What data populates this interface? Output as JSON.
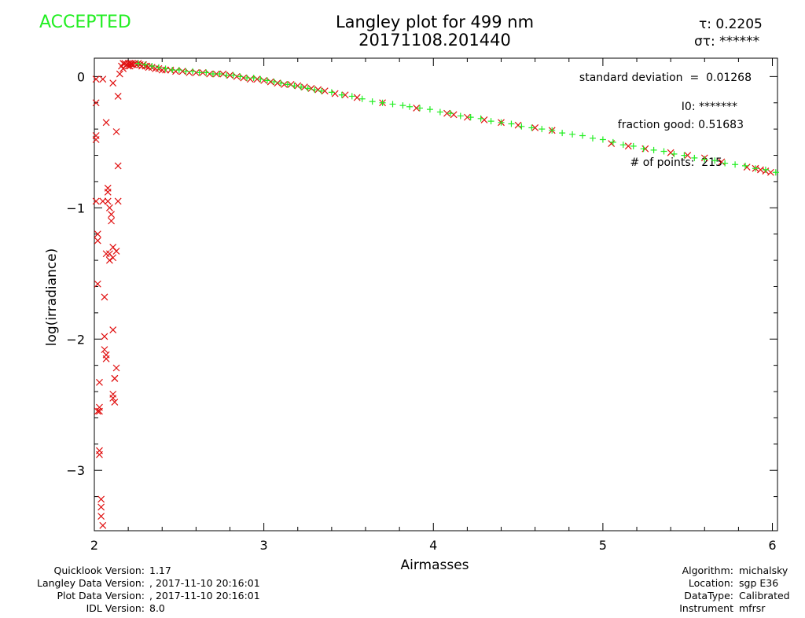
{
  "status": "ACCEPTED",
  "title": {
    "line1": "Langley plot for 499 nm",
    "line2": "20171108.201440"
  },
  "stats": {
    "tau_label": "τ:",
    "tau_value": "0.2205",
    "sigma_label": "στ:",
    "sigma_value": "******",
    "std_label": "standard deviation",
    "std_eq": "=",
    "std_value": "0.01268",
    "i0_label": "I0:",
    "i0_value": "*******",
    "frac_label": "fraction good:",
    "frac_value": "0.51683",
    "npts_label": "# of points:",
    "npts_value": "215"
  },
  "footer_left": [
    {
      "label": "Quicklook Version:",
      "value": "1.17"
    },
    {
      "label": "Langley Data Version:",
      "value": ", 2017-11-10 20:16:01"
    },
    {
      "label": "Plot Data Version:",
      "value": ", 2017-11-10 20:16:01"
    },
    {
      "label": "IDL Version:",
      "value": "8.0"
    }
  ],
  "footer_right": [
    {
      "label": "Algorithm:",
      "value": "michalsky"
    },
    {
      "label": "Location:",
      "value": "sgp E36"
    },
    {
      "label": "DataType:",
      "value": "Calibrated"
    },
    {
      "label": "Instrument",
      "value": "mfrsr"
    }
  ],
  "colors": {
    "accepted": "#22ee22",
    "rejected": "#e01010",
    "axis": "#000000"
  },
  "chart_data": {
    "type": "scatter",
    "title": "Langley plot for 499 nm",
    "xlabel": "Airmasses",
    "ylabel": "log(irradiance)",
    "xlim": [
      2.0,
      6.03
    ],
    "ylim": [
      -3.46,
      0.14
    ],
    "xticks": [
      2,
      3,
      4,
      5,
      6
    ],
    "yticks": [
      0,
      -1,
      -2,
      -3
    ],
    "grid": false,
    "fit_line": {
      "slope": -0.2205,
      "intercept": 0.58,
      "from_x": 2.25,
      "to_x": 6.03
    },
    "series": [
      {
        "marker": "cross-x",
        "color": "#e01010",
        "points": [
          [
            2.01,
            -0.02
          ],
          [
            2.01,
            -0.2
          ],
          [
            2.01,
            -0.45
          ],
          [
            2.01,
            -0.48
          ],
          [
            2.01,
            -0.95
          ],
          [
            2.02,
            -1.2
          ],
          [
            2.02,
            -1.25
          ],
          [
            2.02,
            -1.58
          ],
          [
            2.03,
            -2.52
          ],
          [
            2.03,
            -2.55
          ],
          [
            2.03,
            -2.85
          ],
          [
            2.03,
            -2.88
          ],
          [
            2.04,
            -3.22
          ],
          [
            2.04,
            -3.28
          ],
          [
            2.04,
            -3.35
          ],
          [
            2.05,
            -3.42
          ],
          [
            2.02,
            -2.55
          ],
          [
            2.03,
            -2.33
          ],
          [
            2.05,
            -0.02
          ],
          [
            2.06,
            -1.98
          ],
          [
            2.06,
            -2.08
          ],
          [
            2.07,
            -2.12
          ],
          [
            2.07,
            -2.15
          ],
          [
            2.05,
            -0.95
          ],
          [
            2.06,
            -1.68
          ],
          [
            2.07,
            -0.35
          ],
          [
            2.07,
            -1.35
          ],
          [
            2.08,
            -0.85
          ],
          [
            2.08,
            -0.88
          ],
          [
            2.08,
            -0.95
          ],
          [
            2.09,
            -1.0
          ],
          [
            2.09,
            -1.35
          ],
          [
            2.09,
            -1.4
          ],
          [
            2.1,
            -1.05
          ],
          [
            2.1,
            -1.1
          ],
          [
            2.11,
            -0.05
          ],
          [
            2.11,
            -1.3
          ],
          [
            2.11,
            -1.38
          ],
          [
            2.11,
            -1.93
          ],
          [
            2.11,
            -2.42
          ],
          [
            2.11,
            -2.45
          ],
          [
            2.12,
            -2.3
          ],
          [
            2.12,
            -2.3
          ],
          [
            2.12,
            -2.48
          ],
          [
            2.13,
            -0.42
          ],
          [
            2.13,
            -2.22
          ],
          [
            2.13,
            -1.33
          ],
          [
            2.14,
            -0.68
          ],
          [
            2.14,
            -0.95
          ],
          [
            2.14,
            -0.15
          ],
          [
            2.15,
            0.02
          ],
          [
            2.16,
            0.08
          ],
          [
            2.17,
            0.1
          ],
          [
            2.17,
            0.06
          ],
          [
            2.18,
            0.1
          ],
          [
            2.19,
            0.09
          ],
          [
            2.2,
            0.08
          ],
          [
            2.2,
            0.1
          ],
          [
            2.21,
            0.1
          ],
          [
            2.21,
            0.08
          ],
          [
            2.22,
            0.09
          ],
          [
            2.22,
            0.1
          ],
          [
            2.23,
            0.09
          ],
          [
            2.24,
            0.1
          ],
          [
            2.25,
            0.09
          ],
          [
            2.26,
            0.1
          ],
          [
            2.27,
            0.09
          ],
          [
            2.28,
            0.08
          ],
          [
            2.29,
            0.09
          ],
          [
            2.3,
            0.08
          ],
          [
            2.31,
            0.08
          ],
          [
            2.32,
            0.07
          ],
          [
            2.34,
            0.07
          ],
          [
            2.36,
            0.06
          ],
          [
            2.38,
            0.06
          ],
          [
            2.4,
            0.05
          ],
          [
            2.42,
            0.05
          ],
          [
            2.45,
            0.05
          ],
          [
            2.48,
            0.04
          ],
          [
            2.52,
            0.04
          ],
          [
            2.56,
            0.03
          ],
          [
            2.6,
            0.03
          ],
          [
            2.64,
            0.03
          ],
          [
            2.68,
            0.02
          ],
          [
            2.72,
            0.02
          ],
          [
            2.76,
            0.02
          ],
          [
            2.8,
            0.01
          ],
          [
            2.84,
            0.0
          ],
          [
            2.88,
            -0.01
          ],
          [
            2.92,
            -0.02
          ],
          [
            2.96,
            -0.02
          ],
          [
            3.0,
            -0.03
          ],
          [
            3.04,
            -0.04
          ],
          [
            3.08,
            -0.05
          ],
          [
            3.12,
            -0.06
          ],
          [
            3.16,
            -0.06
          ],
          [
            3.2,
            -0.07
          ],
          [
            3.24,
            -0.08
          ],
          [
            3.28,
            -0.09
          ],
          [
            3.32,
            -0.1
          ],
          [
            3.36,
            -0.11
          ],
          [
            3.42,
            -0.13
          ],
          [
            3.48,
            -0.14
          ],
          [
            3.55,
            -0.16
          ],
          [
            3.7,
            -0.2
          ],
          [
            3.9,
            -0.24
          ],
          [
            4.08,
            -0.28
          ],
          [
            4.12,
            -0.29
          ],
          [
            4.2,
            -0.31
          ],
          [
            4.3,
            -0.33
          ],
          [
            4.4,
            -0.35
          ],
          [
            4.5,
            -0.37
          ],
          [
            4.6,
            -0.39
          ],
          [
            4.7,
            -0.41
          ],
          [
            5.05,
            -0.51
          ],
          [
            5.15,
            -0.53
          ],
          [
            5.25,
            -0.55
          ],
          [
            5.4,
            -0.58
          ],
          [
            5.5,
            -0.6
          ],
          [
            5.6,
            -0.62
          ],
          [
            5.7,
            -0.65
          ],
          [
            5.85,
            -0.69
          ],
          [
            5.9,
            -0.7
          ],
          [
            5.93,
            -0.71
          ],
          [
            5.96,
            -0.72
          ],
          [
            5.99,
            -0.73
          ]
        ]
      },
      {
        "marker": "plus",
        "color": "#22ee22",
        "points": [
          [
            2.26,
            0.1
          ],
          [
            2.3,
            0.09
          ],
          [
            2.34,
            0.08
          ],
          [
            2.38,
            0.07
          ],
          [
            2.42,
            0.06
          ],
          [
            2.46,
            0.05
          ],
          [
            2.5,
            0.05
          ],
          [
            2.54,
            0.04
          ],
          [
            2.58,
            0.04
          ],
          [
            2.62,
            0.03
          ],
          [
            2.66,
            0.03
          ],
          [
            2.7,
            0.02
          ],
          [
            2.74,
            0.02
          ],
          [
            2.78,
            0.01
          ],
          [
            2.82,
            0.01
          ],
          [
            2.86,
            0.0
          ],
          [
            2.9,
            -0.01
          ],
          [
            2.94,
            -0.01
          ],
          [
            2.98,
            -0.02
          ],
          [
            3.02,
            -0.03
          ],
          [
            3.06,
            -0.04
          ],
          [
            3.1,
            -0.05
          ],
          [
            3.14,
            -0.06
          ],
          [
            3.18,
            -0.07
          ],
          [
            3.22,
            -0.08
          ],
          [
            3.26,
            -0.09
          ],
          [
            3.3,
            -0.1
          ],
          [
            3.34,
            -0.11
          ],
          [
            3.4,
            -0.12
          ],
          [
            3.46,
            -0.14
          ],
          [
            3.52,
            -0.15
          ],
          [
            3.58,
            -0.17
          ],
          [
            3.64,
            -0.19
          ],
          [
            3.7,
            -0.2
          ],
          [
            3.76,
            -0.21
          ],
          [
            3.82,
            -0.22
          ],
          [
            3.86,
            -0.23
          ],
          [
            3.92,
            -0.24
          ],
          [
            3.98,
            -0.25
          ],
          [
            4.04,
            -0.27
          ],
          [
            4.1,
            -0.28
          ],
          [
            4.16,
            -0.3
          ],
          [
            4.22,
            -0.31
          ],
          [
            4.28,
            -0.32
          ],
          [
            4.34,
            -0.34
          ],
          [
            4.4,
            -0.35
          ],
          [
            4.46,
            -0.36
          ],
          [
            4.52,
            -0.38
          ],
          [
            4.58,
            -0.39
          ],
          [
            4.64,
            -0.4
          ],
          [
            4.7,
            -0.41
          ],
          [
            4.76,
            -0.43
          ],
          [
            4.82,
            -0.44
          ],
          [
            4.88,
            -0.45
          ],
          [
            4.94,
            -0.47
          ],
          [
            5.0,
            -0.48
          ],
          [
            5.06,
            -0.5
          ],
          [
            5.12,
            -0.52
          ],
          [
            5.18,
            -0.53
          ],
          [
            5.24,
            -0.55
          ],
          [
            5.3,
            -0.56
          ],
          [
            5.36,
            -0.57
          ],
          [
            5.42,
            -0.59
          ],
          [
            5.48,
            -0.6
          ],
          [
            5.54,
            -0.62
          ],
          [
            5.6,
            -0.63
          ],
          [
            5.66,
            -0.64
          ],
          [
            5.72,
            -0.66
          ],
          [
            5.78,
            -0.67
          ],
          [
            5.84,
            -0.68
          ],
          [
            5.9,
            -0.7
          ],
          [
            5.96,
            -0.71
          ],
          [
            6.02,
            -0.73
          ]
        ]
      }
    ]
  }
}
